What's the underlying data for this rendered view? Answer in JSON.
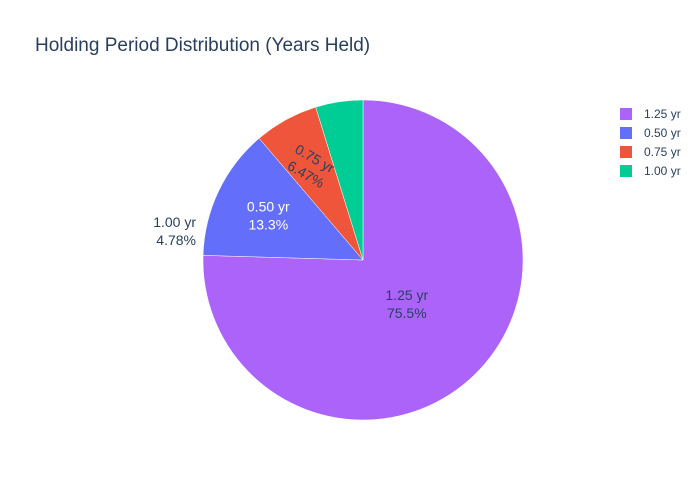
{
  "chart_data": {
    "type": "pie",
    "title": "Holding Period Distribution (Years Held)",
    "categories": [
      "1.25 yr",
      "0.50 yr",
      "0.75 yr",
      "1.00 yr"
    ],
    "values": [
      75.5,
      13.3,
      6.47,
      4.78
    ],
    "percent_labels": [
      "75.5%",
      "13.3%",
      "6.47%",
      "4.78%"
    ],
    "colors": [
      "#ab63fa",
      "#636efa",
      "#ef553b",
      "#00cc96"
    ],
    "legend": {
      "placement": "top-right",
      "entries": [
        "1.25 yr",
        "0.50 yr",
        "0.75 yr",
        "1.00 yr"
      ]
    },
    "direction": "clockwise",
    "start_angle": "top"
  }
}
